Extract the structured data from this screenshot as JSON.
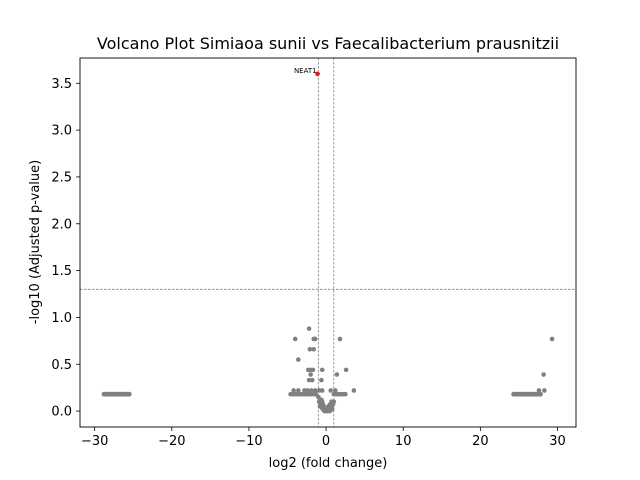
{
  "chart_data": {
    "type": "scatter",
    "title": "Volcano Plot Simiaoa sunii vs Faecalibacterium prausnitzii",
    "xlabel": "log2 (fold change)",
    "ylabel": "-log10 (Adjusted p-value)",
    "xlim": [
      -31.9,
      32.4
    ],
    "ylim": [
      -0.17,
      3.77
    ],
    "xticks": [
      -30,
      -20,
      -10,
      0,
      10,
      20,
      30
    ],
    "yticks": [
      0.0,
      0.5,
      1.0,
      1.5,
      2.0,
      2.5,
      3.0,
      3.5
    ],
    "xtick_labels": [
      "−30",
      "−20",
      "−10",
      "0",
      "10",
      "20",
      "30"
    ],
    "ytick_labels": [
      "0.0",
      "0.5",
      "1.0",
      "1.5",
      "2.0",
      "2.5",
      "3.0",
      "3.5"
    ],
    "thresholds": {
      "x": [
        -1,
        1
      ],
      "y": 1.3
    },
    "grid": false,
    "colors": {
      "significant": "#ff0000",
      "not_significant": "#808080",
      "threshold_line": "#808080"
    },
    "highlighted": [
      {
        "label": "NEAT1",
        "x": -1.1,
        "y": 3.6
      }
    ],
    "series": [
      {
        "color": "#808080",
        "clusters": [
          {
            "x": [
              -28.8,
              -25.5
            ],
            "y": [
              0.18,
              0.18
            ],
            "count": 40
          },
          {
            "x": [
              24.3,
              27.8
            ],
            "y": [
              0.18,
              0.18
            ],
            "count": 40
          }
        ],
        "points": [
          [
            27.6,
            0.22
          ],
          [
            28.3,
            0.22
          ],
          [
            27.8,
            0.18
          ],
          [
            28.2,
            0.39
          ],
          [
            29.3,
            0.77
          ],
          [
            -2.2,
            0.88
          ],
          [
            -1.6,
            0.77
          ],
          [
            -1.4,
            0.77
          ],
          [
            -4.0,
            0.77
          ],
          [
            1.8,
            0.77
          ],
          [
            -2.1,
            0.66
          ],
          [
            -1.6,
            0.66
          ],
          [
            -3.6,
            0.55
          ],
          [
            -2.3,
            0.44
          ],
          [
            -2.0,
            0.44
          ],
          [
            -1.7,
            0.44
          ],
          [
            -0.5,
            0.44
          ],
          [
            2.6,
            0.44
          ],
          [
            1.4,
            0.39
          ],
          [
            -2.0,
            0.39
          ],
          [
            -1.8,
            0.33
          ],
          [
            -2.2,
            0.33
          ],
          [
            -0.6,
            0.33
          ],
          [
            3.6,
            0.22
          ],
          [
            -4.2,
            0.22
          ],
          [
            -3.6,
            0.22
          ],
          [
            -2.8,
            0.22
          ],
          [
            -2.4,
            0.22
          ],
          [
            -1.9,
            0.22
          ],
          [
            -1.4,
            0.22
          ],
          [
            -0.9,
            0.22
          ],
          [
            -0.5,
            0.22
          ],
          [
            0.6,
            0.22
          ],
          [
            1.2,
            0.22
          ],
          [
            -4.6,
            0.18
          ],
          [
            -4.3,
            0.18
          ],
          [
            -4.0,
            0.18
          ],
          [
            -3.7,
            0.18
          ],
          [
            -3.4,
            0.18
          ],
          [
            -3.1,
            0.18
          ],
          [
            -2.8,
            0.18
          ],
          [
            -2.5,
            0.18
          ],
          [
            -2.2,
            0.18
          ],
          [
            -1.9,
            0.18
          ],
          [
            -1.6,
            0.18
          ],
          [
            -1.3,
            0.18
          ],
          [
            1.0,
            0.18
          ],
          [
            1.3,
            0.18
          ],
          [
            1.6,
            0.18
          ],
          [
            1.9,
            0.18
          ],
          [
            2.2,
            0.18
          ],
          [
            2.5,
            0.18
          ],
          [
            -1.0,
            0.15
          ],
          [
            -0.8,
            0.12
          ],
          [
            -0.6,
            0.12
          ],
          [
            -0.9,
            0.1
          ],
          [
            -0.5,
            0.1
          ],
          [
            0.7,
            0.1
          ],
          [
            1.0,
            0.1
          ],
          [
            -0.7,
            0.08
          ],
          [
            -0.4,
            0.07
          ],
          [
            0.5,
            0.07
          ],
          [
            0.9,
            0.07
          ],
          [
            -0.3,
            0.05
          ],
          [
            0.3,
            0.05
          ],
          [
            0.6,
            0.04
          ],
          [
            -0.2,
            0.03
          ],
          [
            0.2,
            0.03
          ],
          [
            0.1,
            0.01
          ],
          [
            -0.1,
            0.01
          ],
          [
            0.4,
            0.01
          ],
          [
            -0.4,
            0.02
          ],
          [
            0.0,
            0.0
          ],
          [
            0.2,
            0.0
          ],
          [
            -0.2,
            0.0
          ],
          [
            0.5,
            0.0
          ],
          [
            -0.5,
            0.03
          ],
          [
            0.8,
            0.02
          ],
          [
            -0.8,
            0.05
          ]
        ]
      },
      {
        "color": "#ff0000",
        "points": [
          [
            -1.1,
            3.6
          ]
        ]
      }
    ]
  }
}
